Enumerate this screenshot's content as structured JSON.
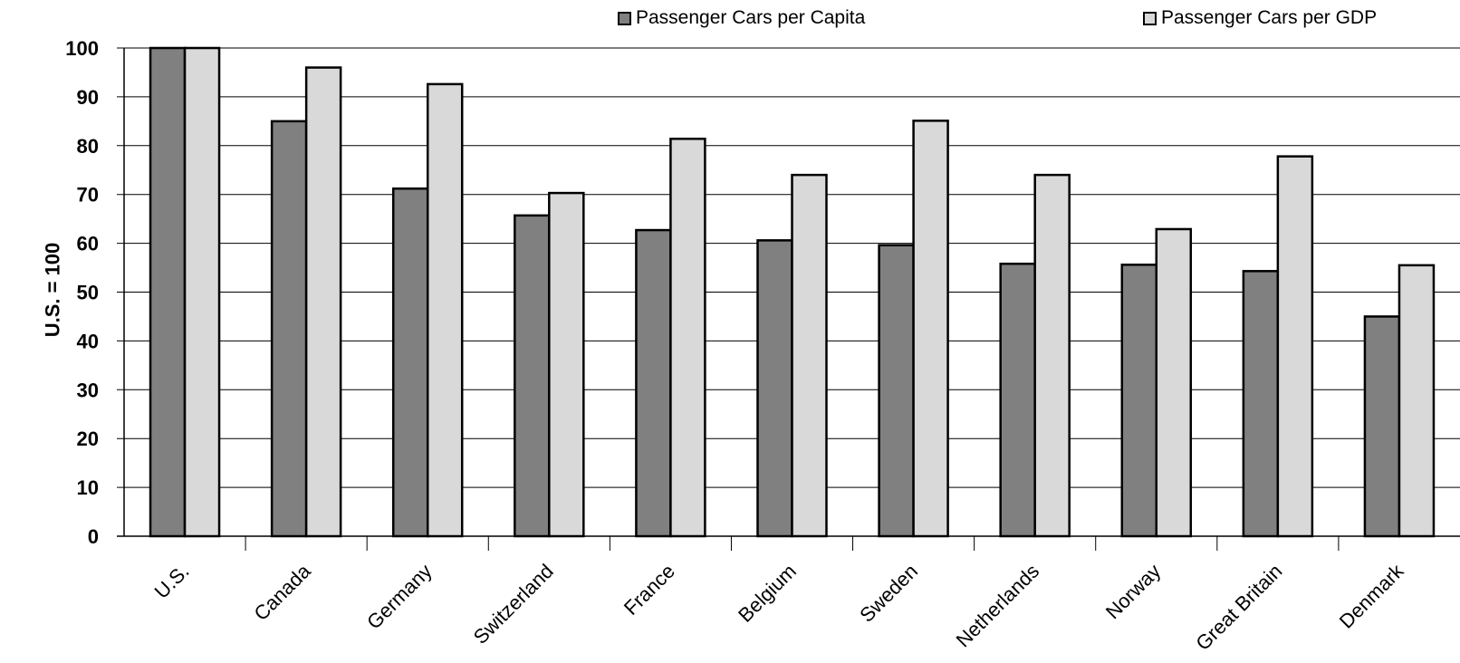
{
  "chart_data": {
    "type": "bar",
    "categories": [
      "U.S.",
      "Canada",
      "Germany",
      "Switzerland",
      "France",
      "Belgium",
      "Sweden",
      "Netherlands",
      "Norway",
      "Great Britain",
      "Denmark"
    ],
    "series": [
      {
        "name": "Passenger Cars per Capita",
        "color": "#808080",
        "values": [
          100,
          85,
          71.2,
          65.7,
          62.7,
          60.6,
          59.6,
          55.8,
          55.6,
          54.3,
          45
        ]
      },
      {
        "name": "Passenger Cars per GDP",
        "color": "#d9d9d9",
        "values": [
          100,
          96,
          92.6,
          70.3,
          81.4,
          74,
          85.1,
          74,
          62.9,
          77.8,
          55.5
        ]
      }
    ],
    "ylabel": "U.S. = 100",
    "xlabel": "",
    "ylim": [
      0,
      100
    ],
    "yticks": [
      0,
      10,
      20,
      30,
      40,
      50,
      60,
      70,
      80,
      90,
      100
    ],
    "grid": true,
    "legend": "top"
  }
}
